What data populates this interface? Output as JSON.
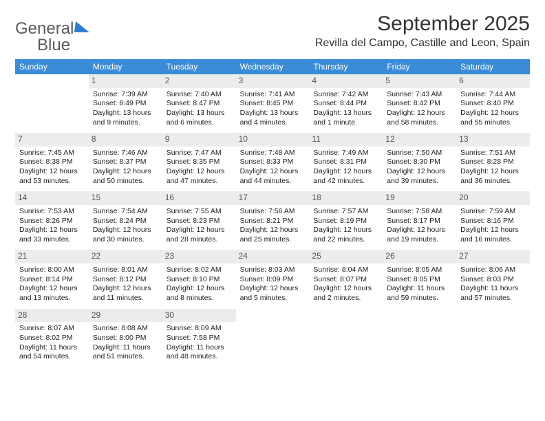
{
  "logo": {
    "word1": "General",
    "word2": "Blue"
  },
  "title": "September 2025",
  "location": "Revilla del Campo, Castille and Leon, Spain",
  "colors": {
    "header_bg": "#3a8bd8",
    "header_text": "#ffffff",
    "daynum_bg": "#ececec",
    "text": "#222222",
    "logo_gray": "#5b5b5b",
    "logo_blue": "#2f7fce"
  },
  "weekdays": [
    "Sunday",
    "Monday",
    "Tuesday",
    "Wednesday",
    "Thursday",
    "Friday",
    "Saturday"
  ],
  "first_weekday_index": 1,
  "days": [
    {
      "n": 1,
      "sunrise": "7:39 AM",
      "sunset": "8:49 PM",
      "daylight": "13 hours and 9 minutes."
    },
    {
      "n": 2,
      "sunrise": "7:40 AM",
      "sunset": "8:47 PM",
      "daylight": "13 hours and 6 minutes."
    },
    {
      "n": 3,
      "sunrise": "7:41 AM",
      "sunset": "8:45 PM",
      "daylight": "13 hours and 4 minutes."
    },
    {
      "n": 4,
      "sunrise": "7:42 AM",
      "sunset": "8:44 PM",
      "daylight": "13 hours and 1 minute."
    },
    {
      "n": 5,
      "sunrise": "7:43 AM",
      "sunset": "8:42 PM",
      "daylight": "12 hours and 58 minutes."
    },
    {
      "n": 6,
      "sunrise": "7:44 AM",
      "sunset": "8:40 PM",
      "daylight": "12 hours and 55 minutes."
    },
    {
      "n": 7,
      "sunrise": "7:45 AM",
      "sunset": "8:38 PM",
      "daylight": "12 hours and 53 minutes."
    },
    {
      "n": 8,
      "sunrise": "7:46 AM",
      "sunset": "8:37 PM",
      "daylight": "12 hours and 50 minutes."
    },
    {
      "n": 9,
      "sunrise": "7:47 AM",
      "sunset": "8:35 PM",
      "daylight": "12 hours and 47 minutes."
    },
    {
      "n": 10,
      "sunrise": "7:48 AM",
      "sunset": "8:33 PM",
      "daylight": "12 hours and 44 minutes."
    },
    {
      "n": 11,
      "sunrise": "7:49 AM",
      "sunset": "8:31 PM",
      "daylight": "12 hours and 42 minutes."
    },
    {
      "n": 12,
      "sunrise": "7:50 AM",
      "sunset": "8:30 PM",
      "daylight": "12 hours and 39 minutes."
    },
    {
      "n": 13,
      "sunrise": "7:51 AM",
      "sunset": "8:28 PM",
      "daylight": "12 hours and 36 minutes."
    },
    {
      "n": 14,
      "sunrise": "7:53 AM",
      "sunset": "8:26 PM",
      "daylight": "12 hours and 33 minutes."
    },
    {
      "n": 15,
      "sunrise": "7:54 AM",
      "sunset": "8:24 PM",
      "daylight": "12 hours and 30 minutes."
    },
    {
      "n": 16,
      "sunrise": "7:55 AM",
      "sunset": "8:23 PM",
      "daylight": "12 hours and 28 minutes."
    },
    {
      "n": 17,
      "sunrise": "7:56 AM",
      "sunset": "8:21 PM",
      "daylight": "12 hours and 25 minutes."
    },
    {
      "n": 18,
      "sunrise": "7:57 AM",
      "sunset": "8:19 PM",
      "daylight": "12 hours and 22 minutes."
    },
    {
      "n": 19,
      "sunrise": "7:58 AM",
      "sunset": "8:17 PM",
      "daylight": "12 hours and 19 minutes."
    },
    {
      "n": 20,
      "sunrise": "7:59 AM",
      "sunset": "8:16 PM",
      "daylight": "12 hours and 16 minutes."
    },
    {
      "n": 21,
      "sunrise": "8:00 AM",
      "sunset": "8:14 PM",
      "daylight": "12 hours and 13 minutes."
    },
    {
      "n": 22,
      "sunrise": "8:01 AM",
      "sunset": "8:12 PM",
      "daylight": "12 hours and 11 minutes."
    },
    {
      "n": 23,
      "sunrise": "8:02 AM",
      "sunset": "8:10 PM",
      "daylight": "12 hours and 8 minutes."
    },
    {
      "n": 24,
      "sunrise": "8:03 AM",
      "sunset": "8:09 PM",
      "daylight": "12 hours and 5 minutes."
    },
    {
      "n": 25,
      "sunrise": "8:04 AM",
      "sunset": "8:07 PM",
      "daylight": "12 hours and 2 minutes."
    },
    {
      "n": 26,
      "sunrise": "8:05 AM",
      "sunset": "8:05 PM",
      "daylight": "11 hours and 59 minutes."
    },
    {
      "n": 27,
      "sunrise": "8:06 AM",
      "sunset": "8:03 PM",
      "daylight": "11 hours and 57 minutes."
    },
    {
      "n": 28,
      "sunrise": "8:07 AM",
      "sunset": "8:02 PM",
      "daylight": "11 hours and 54 minutes."
    },
    {
      "n": 29,
      "sunrise": "8:08 AM",
      "sunset": "8:00 PM",
      "daylight": "11 hours and 51 minutes."
    },
    {
      "n": 30,
      "sunrise": "8:09 AM",
      "sunset": "7:58 PM",
      "daylight": "11 hours and 48 minutes."
    }
  ],
  "labels": {
    "sunrise": "Sunrise:",
    "sunset": "Sunset:",
    "daylight": "Daylight:"
  }
}
